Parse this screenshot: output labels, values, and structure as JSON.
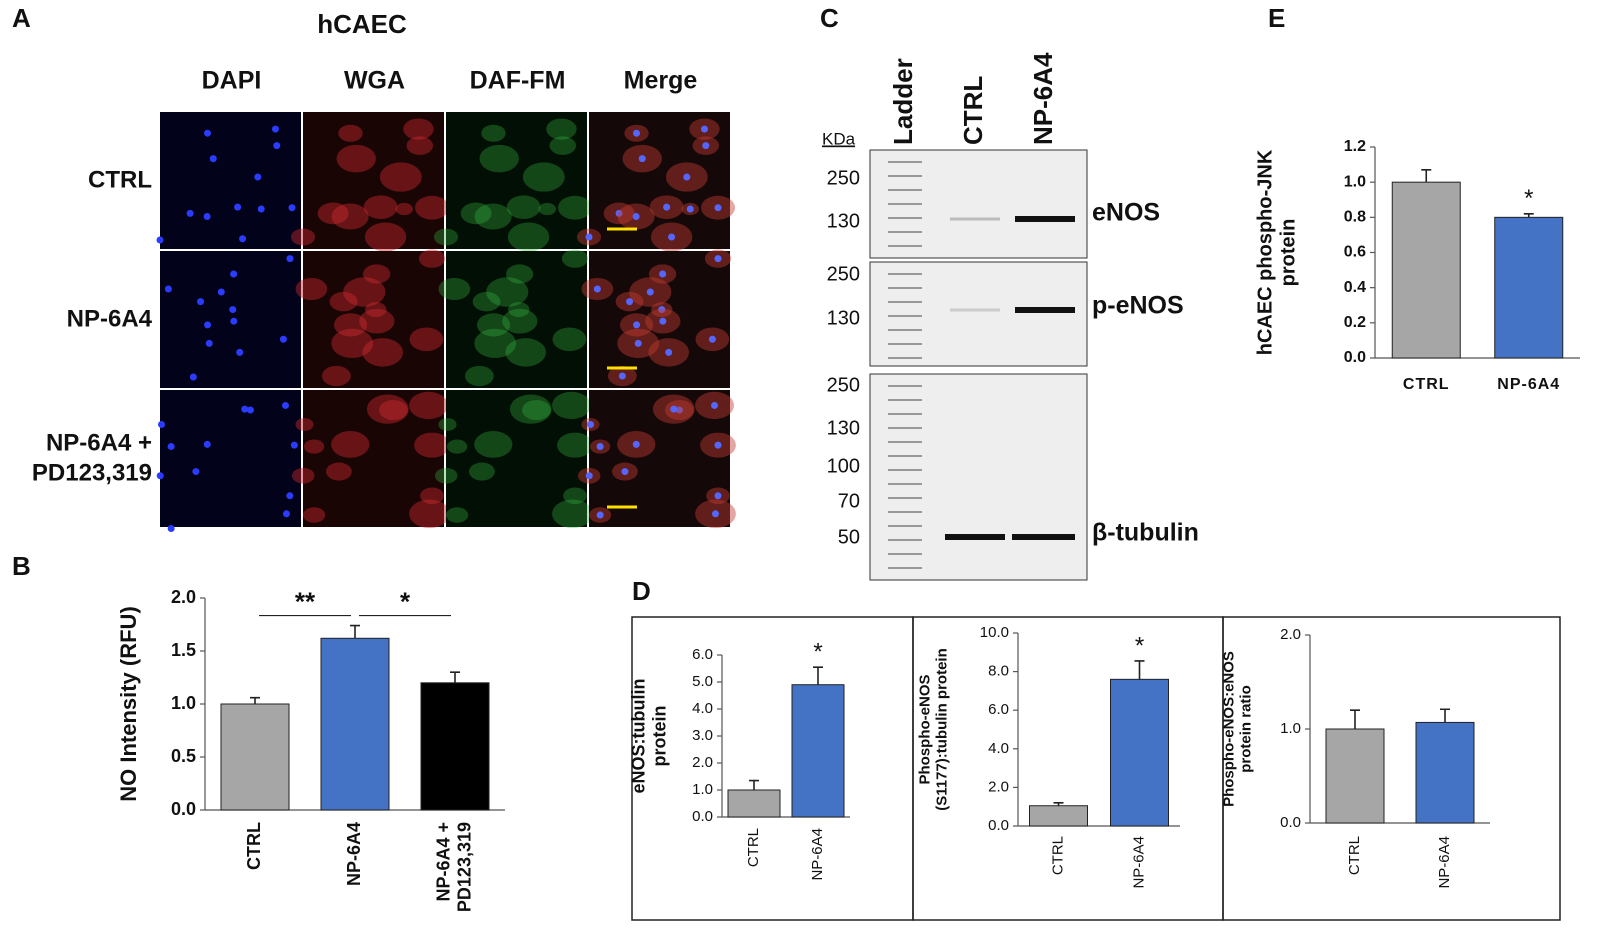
{
  "panel_a": {
    "label": "A",
    "title": "hCAEC",
    "columns": [
      "DAPI",
      "WGA",
      "DAF-FM",
      "Merge"
    ],
    "rows": [
      "CTRL",
      "NP-6A4",
      "NP-6A4 + PD123,319"
    ]
  },
  "panel_c": {
    "label": "C",
    "lanes": [
      "Ladder",
      "CTRL",
      "NP-6A4"
    ],
    "unit": "KDa",
    "blots": [
      {
        "markers": [
          250,
          130
        ],
        "target": "eNOS"
      },
      {
        "markers": [
          250,
          130
        ],
        "target": "p-eNOS"
      },
      {
        "markers": [
          250,
          130,
          100,
          70,
          50
        ],
        "target": "β-tubulin"
      }
    ]
  },
  "panel_b_label": "B",
  "panel_d_label": "D",
  "panel_e_label": "E",
  "chart_data": [
    {
      "type": "bar",
      "ylabel": "NO Intensity (RFU)",
      "categories": [
        "CTRL",
        "NP-6A4",
        "NP-6A4 + PD123,319"
      ],
      "values": [
        1.0,
        1.62,
        1.2
      ],
      "errors": [
        0.06,
        0.12,
        0.1
      ],
      "colors": [
        "#a6a6a6",
        "#4472c4",
        "#000000"
      ],
      "ylim": [
        0,
        2
      ],
      "yticks": [
        {
          "value": 0,
          "label": "0.0"
        },
        {
          "value": 0.5,
          "label": "0.5"
        },
        {
          "value": 1,
          "label": "1.0"
        },
        {
          "value": 1.5,
          "label": "1.5"
        },
        {
          "value": 2,
          "label": "2.0"
        }
      ],
      "annotations": [
        "**",
        "*"
      ]
    },
    {
      "type": "bar",
      "ylabel": "eNOS:tubulin protein",
      "categories": [
        "CTRL",
        "NP-6A4"
      ],
      "values": [
        1.0,
        4.9
      ],
      "errors": [
        0.35,
        0.65
      ],
      "colors": [
        "#a6a6a6",
        "#4472c4"
      ],
      "ylim": [
        0,
        6
      ],
      "yticks": [
        {
          "value": 0,
          "label": "0.0"
        },
        {
          "value": 1,
          "label": "1.0"
        },
        {
          "value": 2,
          "label": "2.0"
        },
        {
          "value": 3,
          "label": "3.0"
        },
        {
          "value": 4,
          "label": "4.0"
        },
        {
          "value": 5,
          "label": "5.0"
        },
        {
          "value": 6,
          "label": "6.0"
        }
      ],
      "annotations": [
        "*"
      ]
    },
    {
      "type": "bar",
      "ylabel": "Phospho-eNOS (S1177):tubulin protein",
      "categories": [
        "CTRL",
        "NP-6A4"
      ],
      "values": [
        1.05,
        7.6
      ],
      "errors": [
        0.15,
        0.95
      ],
      "colors": [
        "#a6a6a6",
        "#4472c4"
      ],
      "ylim": [
        0,
        10
      ],
      "yticks": [
        {
          "value": 0,
          "label": "0.0"
        },
        {
          "value": 2,
          "label": "2.0"
        },
        {
          "value": 4,
          "label": "4.0"
        },
        {
          "value": 6,
          "label": "6.0"
        },
        {
          "value": 8,
          "label": "8.0"
        },
        {
          "value": 10,
          "label": "10.0"
        }
      ],
      "annotations": [
        "*"
      ]
    },
    {
      "type": "bar",
      "ylabel": "Phospho-eNOS:eNOS protein ratio",
      "categories": [
        "CTRL",
        "NP-6A4"
      ],
      "values": [
        1.0,
        1.07
      ],
      "errors": [
        0.2,
        0.14
      ],
      "colors": [
        "#a6a6a6",
        "#4472c4"
      ],
      "ylim": [
        0,
        2
      ],
      "yticks": [
        {
          "value": 0,
          "label": "0.0"
        },
        {
          "value": 1,
          "label": "1.0"
        },
        {
          "value": 2,
          "label": "2.0"
        }
      ],
      "annotations": []
    },
    {
      "type": "bar",
      "ylabel": "hCAEC phospho-JNK protein",
      "categories": [
        "CTRL",
        "NP-6A4"
      ],
      "values": [
        1.0,
        0.8
      ],
      "errors": [
        0.07,
        0.02
      ],
      "colors": [
        "#a6a6a6",
        "#4472c4"
      ],
      "ylim": [
        0,
        1.2
      ],
      "yticks": [
        {
          "value": 0,
          "label": "0.0"
        },
        {
          "value": 0.2,
          "label": "0.2"
        },
        {
          "value": 0.4,
          "label": "0.4"
        },
        {
          "value": 0.6,
          "label": "0.6"
        },
        {
          "value": 0.8,
          "label": "0.8"
        },
        {
          "value": 1,
          "label": "1.0"
        },
        {
          "value": 1.2,
          "label": "1.2"
        }
      ],
      "annotations": [
        "*"
      ]
    }
  ]
}
